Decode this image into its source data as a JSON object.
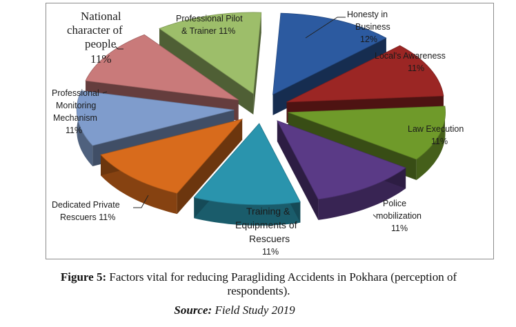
{
  "chart_data": {
    "type": "pie",
    "slices": [
      {
        "label": "Honesty in Business",
        "value": 12,
        "value_label": "12%",
        "color": "#2c5aa0"
      },
      {
        "label": "Local's Awareness",
        "value": 11,
        "value_label": "11%",
        "color": "#9b2624"
      },
      {
        "label": "Law Execution",
        "value": 11,
        "value_label": "11%",
        "color": "#6f9a2a"
      },
      {
        "label": "Police mobilization",
        "value": 11,
        "value_label": "11%",
        "color": "#5a3a86"
      },
      {
        "label": "Training & Equipments of Rescuers",
        "value": 11,
        "value_label": "11%",
        "color": "#2a94ad"
      },
      {
        "label": "Dedicated Private Rescuers",
        "value": 11,
        "value_label": "11%",
        "color": "#d86b1c"
      },
      {
        "label": "Professional Monitoring Mechanism",
        "value": 11,
        "value_label": "11%",
        "color": "#7f9ccc"
      },
      {
        "label": "National character of people",
        "value": 11,
        "value_label": "11%",
        "color": "#c97a7a"
      },
      {
        "label": "Professional Pilot & Trainer",
        "value": 11,
        "value_label": "11%",
        "color": "#9dbe6a"
      }
    ]
  },
  "labels": {
    "honesty_1": "Honesty in",
    "honesty_2": "Business",
    "honesty_pct": "12%",
    "locals_1": "Local's Awareness",
    "locals_pct": "11%",
    "law_1": "Law Execution",
    "law_pct": "11%",
    "police_1": "Police",
    "police_2": "mobilization",
    "police_pct": "11%",
    "training_1": "Training &",
    "training_2": "Equipments of",
    "training_3": "Rescuers",
    "training_pct": "11%",
    "private_1": "Dedicated Private",
    "private_2": "Rescuers 11%",
    "monitoring_1": "Professional",
    "monitoring_2": "Monitoring",
    "monitoring_3": "Mechanism",
    "monitoring_pct": "11%",
    "national_1": "National",
    "national_2": "character of",
    "national_3": "people",
    "national_pct": "11%",
    "pilot_1": "Professional Pilot",
    "pilot_2": "& Trainer 11%"
  },
  "caption": {
    "figure_label": "Figure 5:",
    "text": " Factors vital for reducing Paragliding Accidents in Pokhara (perception of respondents).",
    "source_label": "Source:",
    "source_text": " Field Study 2019"
  }
}
